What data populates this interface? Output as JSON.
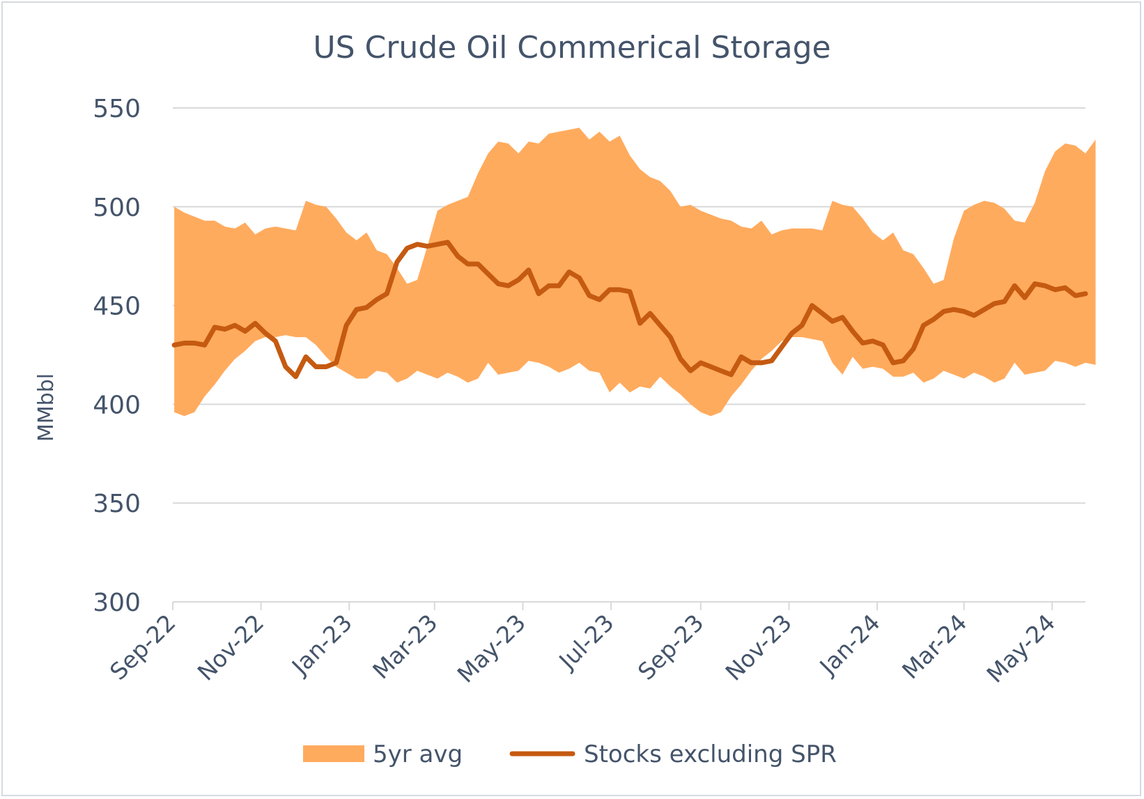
{
  "chart_data": {
    "type": "area",
    "title": "US Crude Oil Commerical Storage",
    "ylabel": "MMbbl",
    "xlabel": "",
    "ylim": [
      300,
      550
    ],
    "yticks": [
      300,
      350,
      400,
      450,
      500,
      550
    ],
    "x_start": "2022-09-02",
    "x_step_days": 7,
    "xtick_labels": [
      {
        "label": "Sep-22",
        "date": "2022-09-01"
      },
      {
        "label": "Nov-22",
        "date": "2022-11-01"
      },
      {
        "label": "Jan-23",
        "date": "2023-01-01"
      },
      {
        "label": "Mar-23",
        "date": "2023-03-01"
      },
      {
        "label": "May-23",
        "date": "2023-05-01"
      },
      {
        "label": "Jul-23",
        "date": "2023-07-01"
      },
      {
        "label": "Sep-23",
        "date": "2023-09-01"
      },
      {
        "label": "Nov-23",
        "date": "2023-11-01"
      },
      {
        "label": "Jan-24",
        "date": "2024-01-01"
      },
      {
        "label": "Mar-24",
        "date": "2024-03-01"
      },
      {
        "label": "May-24",
        "date": "2024-05-01"
      }
    ],
    "series": [
      {
        "name": "5yr avg",
        "kind": "band",
        "color": "#ffab5e",
        "upper": [
          500,
          497,
          495,
          493,
          493,
          490,
          489,
          492,
          486,
          489,
          490,
          489,
          488,
          503,
          501,
          500,
          494,
          487,
          483,
          487,
          478,
          476,
          469,
          461,
          463,
          480,
          498,
          501,
          503,
          505,
          517,
          527,
          533,
          532,
          527,
          533,
          532,
          537,
          538,
          539,
          540,
          534,
          538,
          533,
          536,
          526,
          519,
          515,
          513,
          508,
          500,
          501,
          498,
          496,
          494,
          493,
          490,
          489,
          493,
          486,
          488,
          489,
          489,
          489,
          488,
          503,
          501,
          500,
          494,
          487,
          483,
          487,
          478,
          476,
          469,
          461,
          463,
          484,
          498,
          501,
          503,
          502,
          499,
          493,
          492,
          502,
          518,
          528,
          532,
          531,
          527,
          534
        ],
        "lower": [
          396,
          394,
          396,
          404,
          410,
          417,
          423,
          427,
          432,
          434,
          434,
          435,
          434,
          434,
          430,
          424,
          419,
          416,
          413,
          413,
          417,
          416,
          411,
          413,
          417,
          415,
          413,
          416,
          414,
          411,
          413,
          421,
          415,
          416,
          417,
          422,
          421,
          419,
          416,
          418,
          421,
          417,
          416,
          406,
          411,
          406,
          409,
          408,
          414,
          409,
          405,
          400,
          396,
          394,
          396,
          404,
          410,
          417,
          423,
          427,
          432,
          434,
          434,
          433,
          432,
          421,
          415,
          424,
          418,
          419,
          418,
          414,
          414,
          416,
          411,
          413,
          417,
          415,
          413,
          416,
          414,
          411,
          413,
          421,
          415,
          416,
          417,
          422,
          421,
          419,
          421,
          420
        ]
      },
      {
        "name": "Stocks excluding SPR",
        "kind": "line",
        "color": "#c55a11",
        "values": [
          430,
          431,
          431,
          430,
          439,
          438,
          440,
          437,
          441,
          436,
          432,
          419,
          414,
          424,
          419,
          419,
          421,
          440,
          448,
          449,
          453,
          456,
          472,
          479,
          481,
          480,
          481,
          482,
          475,
          471,
          471,
          466,
          461,
          460,
          463,
          468,
          456,
          460,
          460,
          467,
          464,
          455,
          453,
          458,
          458,
          457,
          441,
          446,
          440,
          434,
          423,
          417,
          421,
          419,
          417,
          415,
          424,
          421,
          421,
          422,
          429,
          436,
          440,
          450,
          446,
          442,
          444,
          437,
          431,
          432,
          430,
          421,
          422,
          428,
          440,
          443,
          447,
          448,
          447,
          445,
          448,
          451,
          452,
          460,
          454,
          461,
          460,
          458,
          459,
          455,
          456
        ]
      }
    ],
    "legend": "bottom",
    "grid": "horizontal"
  }
}
